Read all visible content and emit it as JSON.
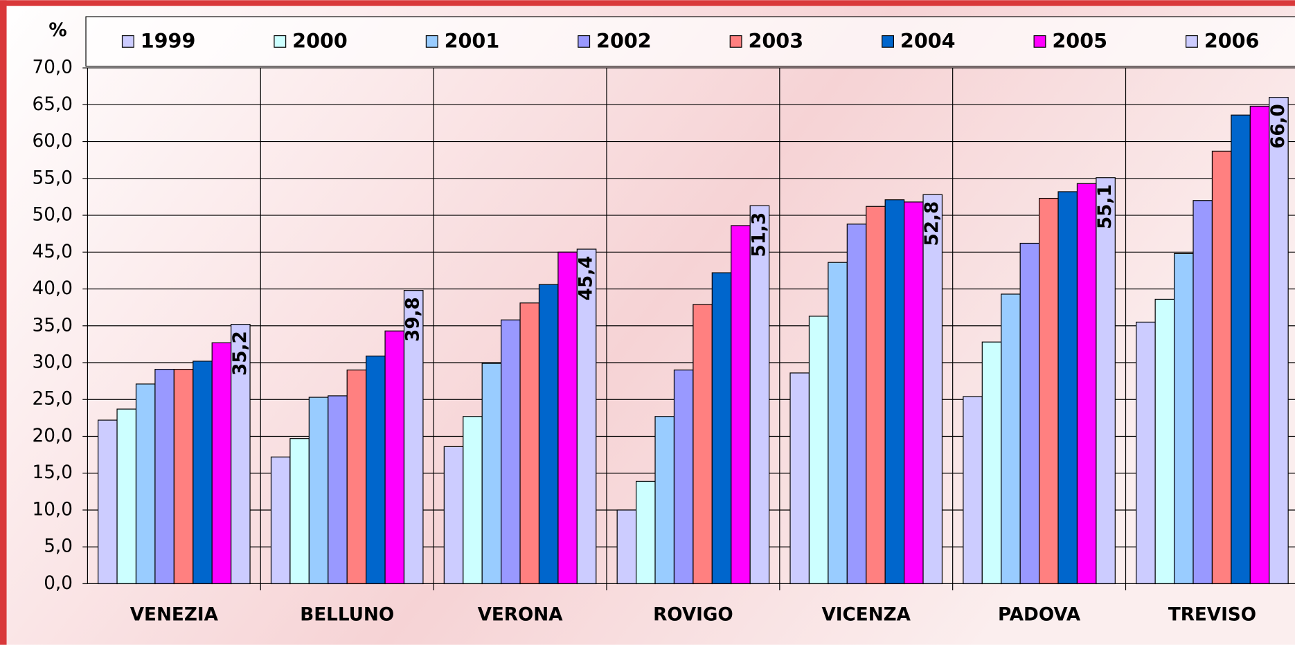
{
  "chart_data": {
    "type": "bar",
    "y_label": "%",
    "categories": [
      "VENEZIA",
      "BELLUNO",
      "VERONA",
      "ROVIGO",
      "VICENZA",
      "PADOVA",
      "TREVISO"
    ],
    "series": [
      {
        "name": "1999",
        "color": "#ccccff",
        "values": [
          22.2,
          17.2,
          18.6,
          10.0,
          28.6,
          25.4,
          35.5
        ]
      },
      {
        "name": "2000",
        "color": "#ccffff",
        "values": [
          23.7,
          19.7,
          22.7,
          13.9,
          36.3,
          32.8,
          38.6
        ]
      },
      {
        "name": "2001",
        "color": "#99ccff",
        "values": [
          27.1,
          25.3,
          29.9,
          22.7,
          43.6,
          39.3,
          44.8
        ]
      },
      {
        "name": "2002",
        "color": "#9999ff",
        "values": [
          29.1,
          25.5,
          35.8,
          29.0,
          48.8,
          46.2,
          52.0
        ]
      },
      {
        "name": "2003",
        "color": "#ff8080",
        "values": [
          29.1,
          29.0,
          38.1,
          37.9,
          51.2,
          52.3,
          58.7
        ]
      },
      {
        "name": "2004",
        "color": "#0066cc",
        "values": [
          30.2,
          30.9,
          40.6,
          42.2,
          52.1,
          53.2,
          63.6
        ]
      },
      {
        "name": "2005",
        "color": "#ff00ff",
        "values": [
          32.7,
          34.3,
          45.0,
          48.6,
          51.8,
          54.3,
          64.8
        ]
      },
      {
        "name": "2006",
        "color": "#ccccff",
        "values": [
          35.2,
          39.8,
          45.4,
          51.3,
          52.8,
          55.1,
          66.0
        ],
        "value_labels": [
          "35,2",
          "39,8",
          "45,4",
          "51,3",
          "52,8",
          "55,1",
          "66,0"
        ]
      }
    ],
    "ylim": [
      0,
      70
    ],
    "yticks": [
      {
        "value": 0,
        "label": "0,0"
      },
      {
        "value": 5,
        "label": "5,0"
      },
      {
        "value": 10,
        "label": "10,0"
      },
      {
        "value": 15,
        "label": "15,0"
      },
      {
        "value": 20,
        "label": "20,0"
      },
      {
        "value": 25,
        "label": "25,0"
      },
      {
        "value": 30,
        "label": "30,0"
      },
      {
        "value": 35,
        "label": "35,0"
      },
      {
        "value": 40,
        "label": "40,0"
      },
      {
        "value": 45,
        "label": "45,0"
      },
      {
        "value": 50,
        "label": "50,0"
      },
      {
        "value": 55,
        "label": "55,0"
      },
      {
        "value": 60,
        "label": "60,0"
      },
      {
        "value": 65,
        "label": "65,0"
      },
      {
        "value": 70,
        "label": "70,0"
      }
    ],
    "grid": true,
    "legend": "top"
  }
}
